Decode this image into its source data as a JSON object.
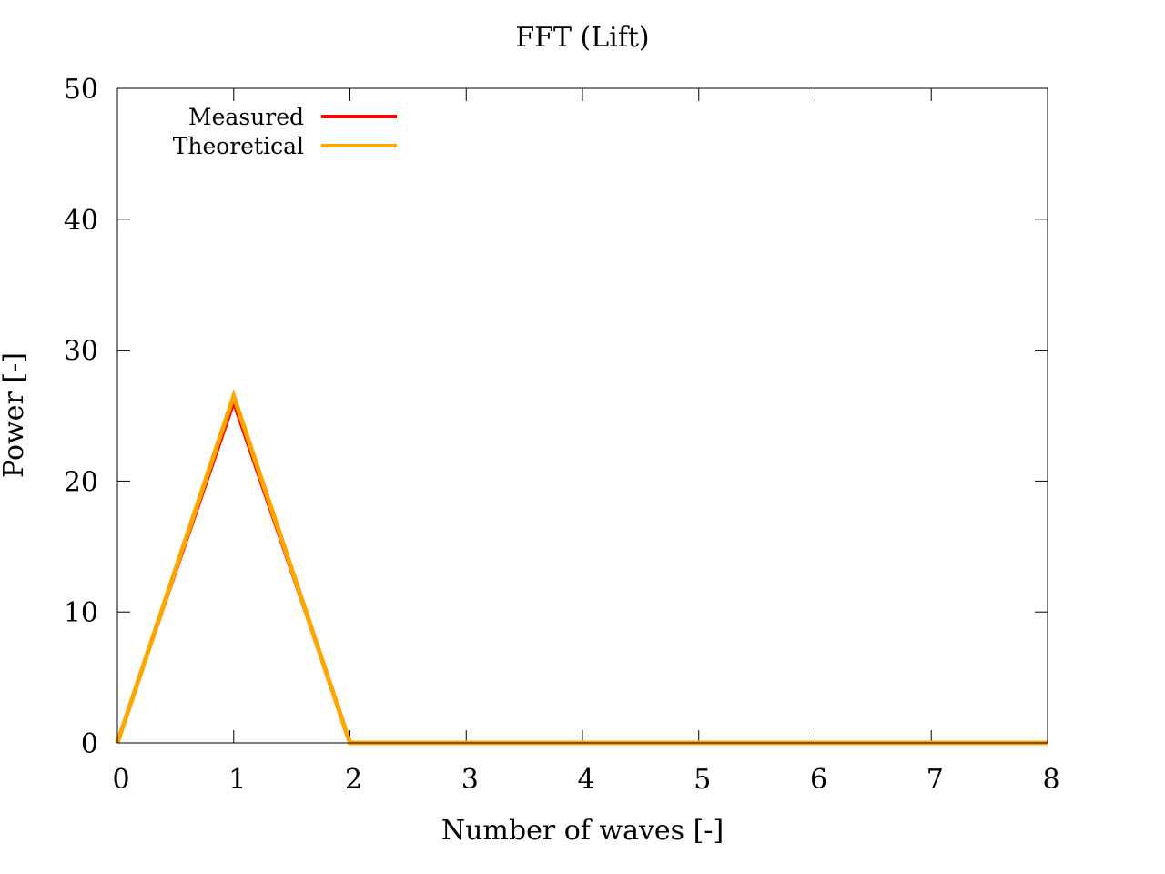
{
  "chart_data": {
    "type": "line",
    "title": "FFT (Lift)",
    "xlabel": "Number of waves [-]",
    "ylabel": "Power [-]",
    "xlim": [
      0,
      8
    ],
    "ylim": [
      0,
      50
    ],
    "xticks": [
      "0",
      "1",
      "2",
      "3",
      "4",
      "5",
      "6",
      "7",
      "8"
    ],
    "yticks": [
      "0",
      "10",
      "20",
      "30",
      "40",
      "50"
    ],
    "grid": false,
    "legend_position": "top-left",
    "x": [
      0,
      1,
      2,
      3,
      4,
      5,
      6,
      7,
      8
    ],
    "series": [
      {
        "name": "Measured",
        "color": "#ff0000",
        "values": [
          0,
          25.9,
          0,
          0,
          0,
          0,
          0,
          0,
          0
        ]
      },
      {
        "name": "Theoretical",
        "color": "#ffa500",
        "values": [
          0,
          26.5,
          0,
          0,
          0,
          0,
          0,
          0,
          0
        ]
      }
    ]
  }
}
